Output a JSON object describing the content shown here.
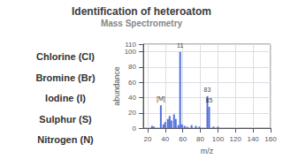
{
  "chart_data": {
    "type": "bar",
    "title": "Identification of heteroatom",
    "subtitle": "Mass Spectrometry",
    "list_items": [
      "Chlorine (Cl)",
      "Bromine (Br)",
      "Iodine (I)",
      "Sulphur (S)",
      "Nitrogen (N)"
    ],
    "x": [
      25,
      27,
      35,
      38,
      40,
      43,
      45,
      47,
      50,
      52,
      55,
      57,
      59,
      62,
      65,
      70,
      75,
      79,
      88,
      90,
      95,
      100
    ],
    "values": [
      3,
      2,
      30,
      5,
      8,
      12,
      16,
      10,
      18,
      12,
      4,
      100,
      5,
      3,
      2,
      4,
      3,
      2,
      42,
      28,
      2,
      2
    ],
    "annotations": [
      {
        "x": 35,
        "y": 33,
        "label": "[M]"
      },
      {
        "x": 57,
        "y": 102,
        "label": "11"
      },
      {
        "x": 88,
        "y": 44,
        "label": "83"
      },
      {
        "x": 90,
        "y": 30,
        "label": "85"
      }
    ],
    "xlabel": "m/z",
    "ylabel": "abundance",
    "xlim": [
      15,
      160
    ],
    "ylim": [
      0,
      110
    ],
    "xticks": [
      20,
      40,
      60,
      80,
      100,
      120,
      140,
      160
    ],
    "yticks": [
      0,
      20,
      40,
      60,
      80,
      100
    ],
    "grid": true
  }
}
